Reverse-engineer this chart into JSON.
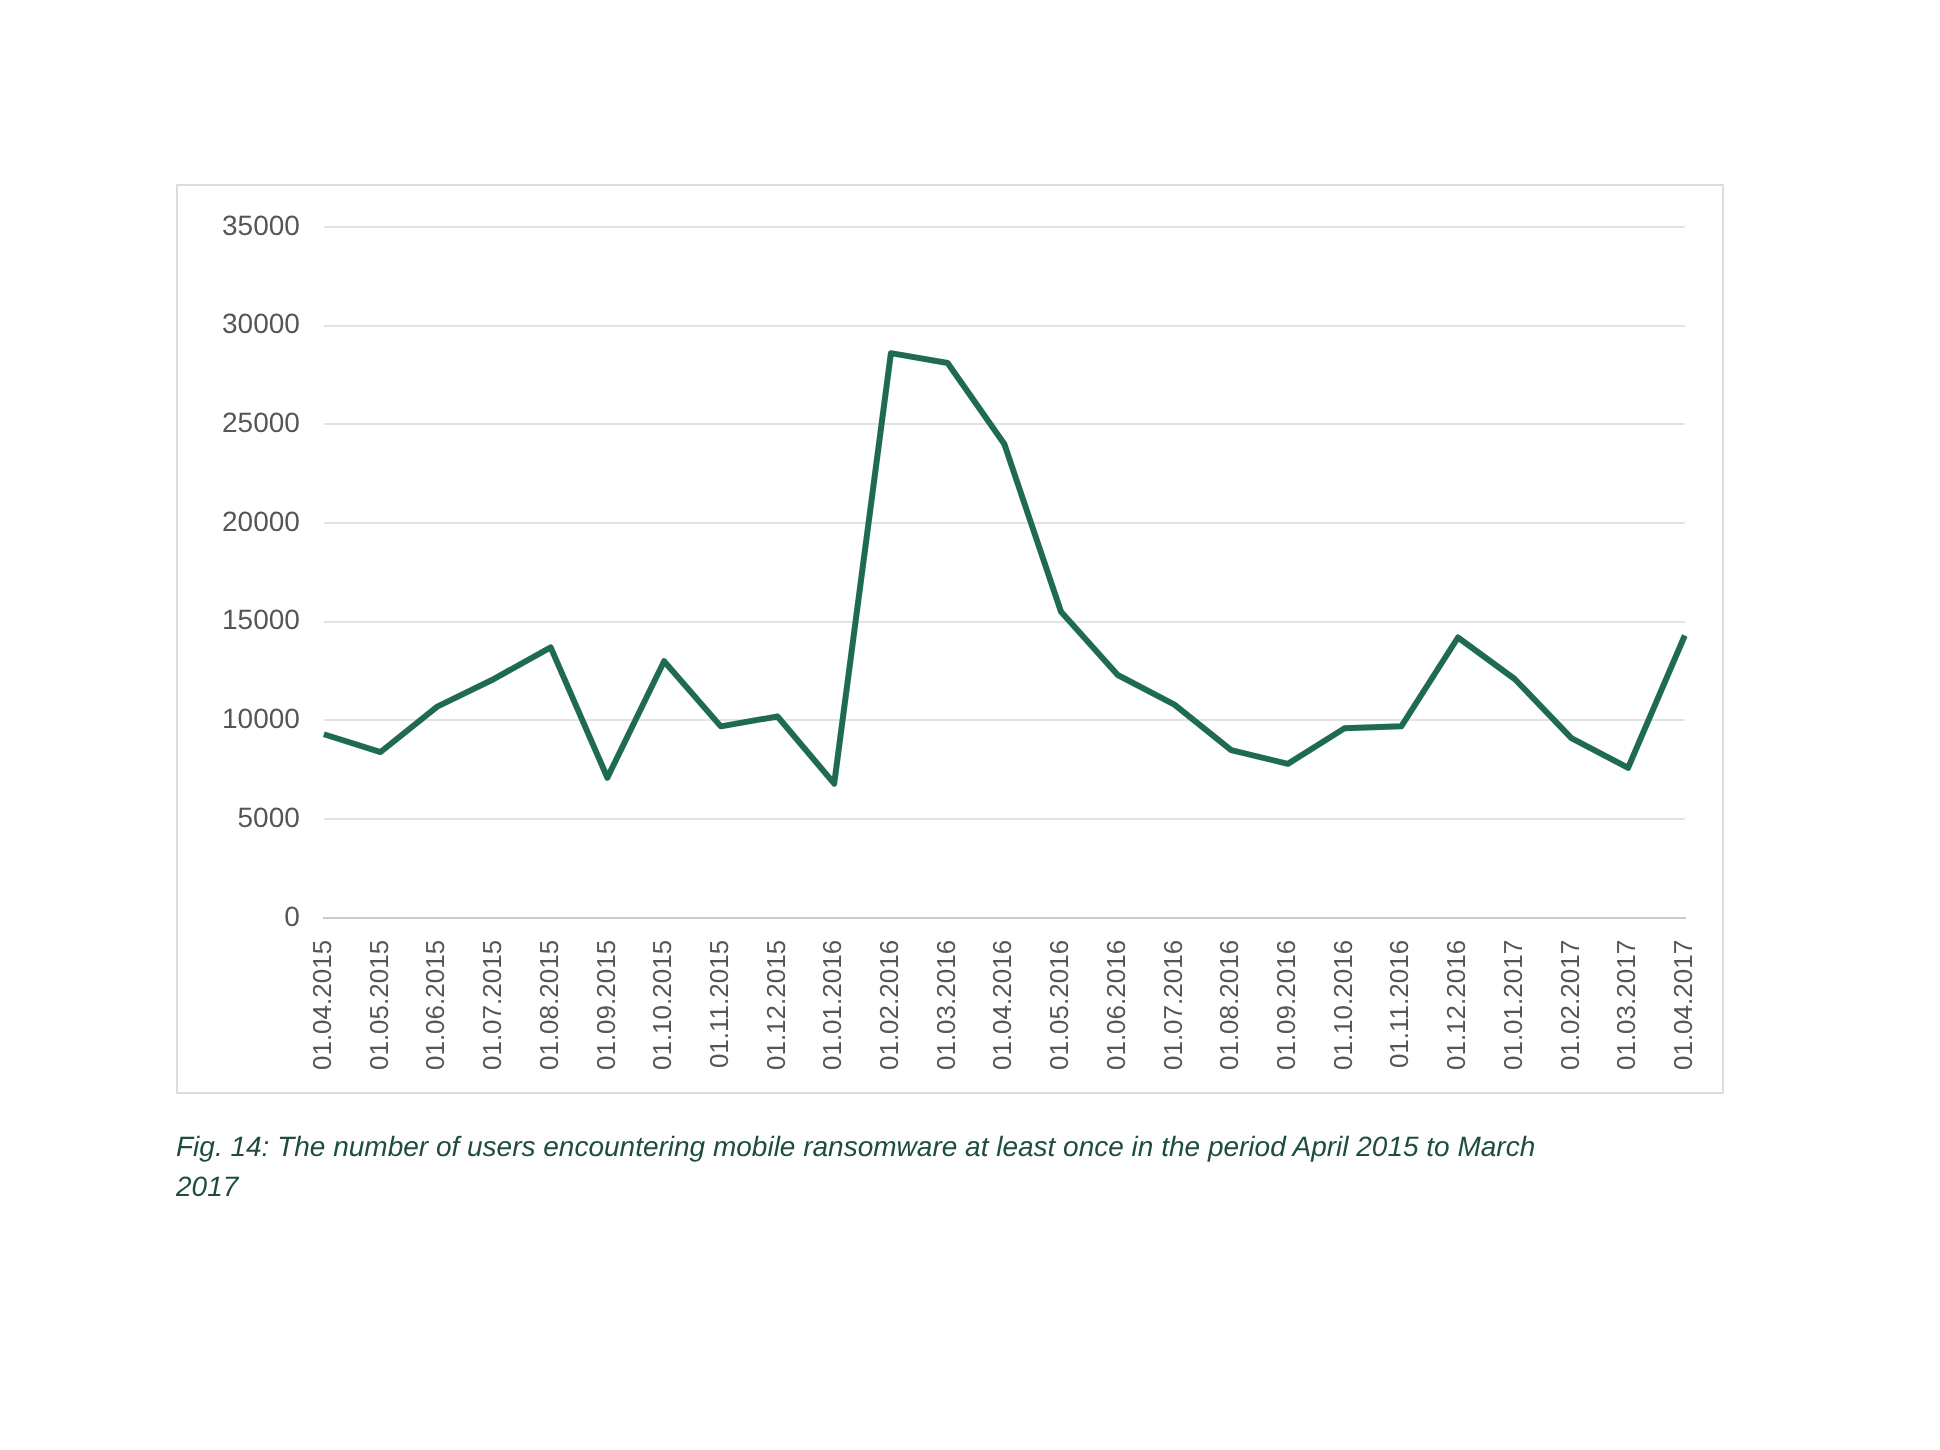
{
  "chart_data": {
    "type": "line",
    "categories": [
      "01.04.2015",
      "01.05.2015",
      "01.06.2015",
      "01.07.2015",
      "01.08.2015",
      "01.09.2015",
      "01.10.2015",
      "01.11.2015",
      "01.12.2015",
      "01.01.2016",
      "01.02.2016",
      "01.03.2016",
      "01.04.2016",
      "01.05.2016",
      "01.06.2016",
      "01.07.2016",
      "01.08.2016",
      "01.09.2016",
      "01.10.2016",
      "01.11.2016",
      "01.12.2016",
      "01.01.2017",
      "01.02.2017",
      "01.03.2017",
      "01.04.2017"
    ],
    "series": [
      {
        "color": "#1e6b4f",
        "values": [
          9300,
          8400,
          10700,
          12100,
          13700,
          7100,
          13000,
          9700,
          10200,
          6800,
          28600,
          28100,
          24000,
          15500,
          12300,
          10800,
          8500,
          7800,
          9600,
          9700,
          14200,
          12100,
          9100,
          7600,
          14300
        ]
      }
    ],
    "ylim": [
      0,
      35000
    ],
    "yticks": [
      0,
      5000,
      10000,
      15000,
      20000,
      25000,
      30000,
      35000
    ],
    "grid": "y",
    "legend": false,
    "marker": "none",
    "line_style": "solid",
    "annotations": [
      "Fig. 14: The number of users encountering mobile ransomware at least once in the period April 2015 to March 2017"
    ]
  }
}
